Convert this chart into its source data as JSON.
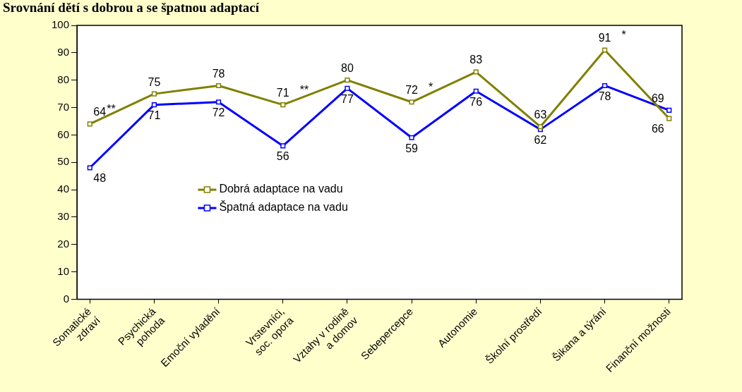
{
  "chart_data": {
    "type": "line",
    "title": "Srovnání dětí s dobrou a se špatnou adaptací",
    "categories": [
      "Somatické\nzdraví",
      "Psychická\npohoda",
      "Emoční vyladění",
      "Vrstevníci,\nsoc. opora",
      "Vztahy v rodině\na domov",
      "Sebepercepce",
      "Autonomie",
      "Školní prostředí",
      "Šikana a týrání",
      "Finanční možnosti"
    ],
    "series": [
      {
        "name": "Dobrá adaptace na vadu",
        "color": "#808000",
        "values": [
          64,
          75,
          78,
          71,
          80,
          72,
          83,
          63,
          91,
          66
        ]
      },
      {
        "name": "Špatná adaptace na vadu",
        "color": "#0000ff",
        "values": [
          48,
          71,
          72,
          56,
          77,
          59,
          76,
          62,
          78,
          69
        ]
      }
    ],
    "ylim": [
      0,
      100
    ],
    "yticks": [
      0,
      10,
      20,
      30,
      40,
      50,
      60,
      70,
      80,
      90,
      100
    ],
    "annotations": [
      {
        "text": "**",
        "x": "Somatické\nzdraví",
        "y": 64
      },
      {
        "text": "**",
        "x": "Vrstevníci,\nsoc. opora",
        "y": 71
      },
      {
        "text": "*",
        "x": "Sebepercepce",
        "y": 72
      },
      {
        "text": "*",
        "x": "Šikana a týrání",
        "y": 91
      }
    ],
    "data_labels": true,
    "grid": false,
    "legend": "center left",
    "marker": "square",
    "line_style": "solid"
  }
}
